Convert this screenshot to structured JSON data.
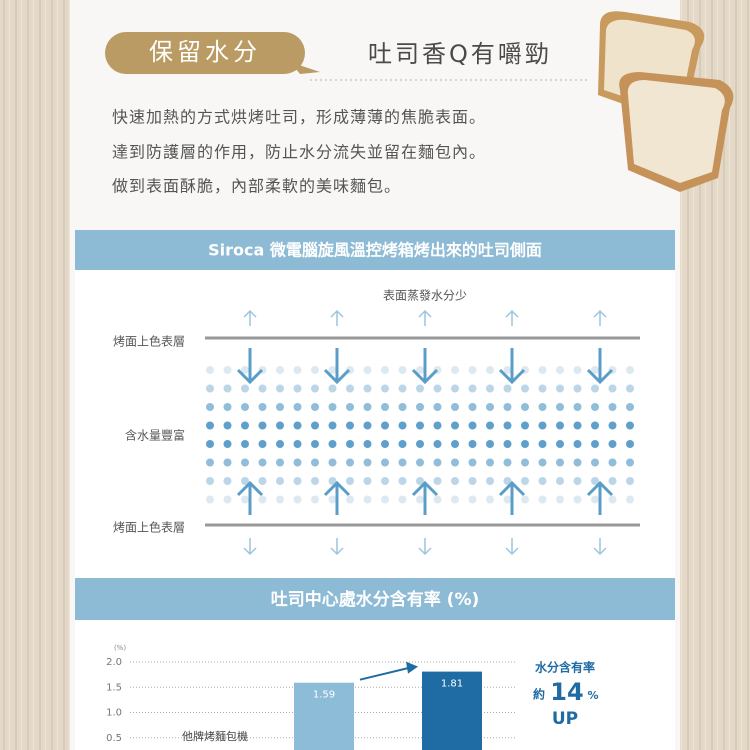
{
  "header": {
    "badge": "保留水分",
    "title": "吐司香Q有嚼勁"
  },
  "intro": [
    "快速加熱的方式烘烤吐司，形成薄薄的焦脆表面。",
    "達到防護層的作用，防止水分流失並留在麵包內。",
    "做到表面酥脆，內部柔軟的美味麵包。"
  ],
  "diagram": {
    "title": "Siroca 微電腦旋風溫控烤箱烤出來的吐司側面",
    "top_note": "表面蒸發水分少",
    "labels": [
      "烤面上色表層",
      "含水量豐富",
      "烤面上色表層"
    ]
  },
  "chart_data": {
    "type": "bar",
    "title": "吐司中心處水分含有率 (%)",
    "y_unit": "(%)",
    "categories": [
      "他牌烤麵包機",
      null
    ],
    "values": [
      1.59,
      1.81
    ],
    "colors": [
      "#8cbcd8",
      "#1f6ba3"
    ],
    "ylim": [
      0,
      2
    ],
    "yticks": [
      {
        "value": 0.5,
        "label": "0.5"
      },
      {
        "value": 1,
        "label": "1.0"
      },
      1.5,
      {
        "value": 2,
        "label": "2.0"
      }
    ],
    "grid": true,
    "annotation": {
      "line1": "水分含有率",
      "prefix": "約",
      "number": "14",
      "unit": "%",
      "line2": "UP"
    }
  }
}
